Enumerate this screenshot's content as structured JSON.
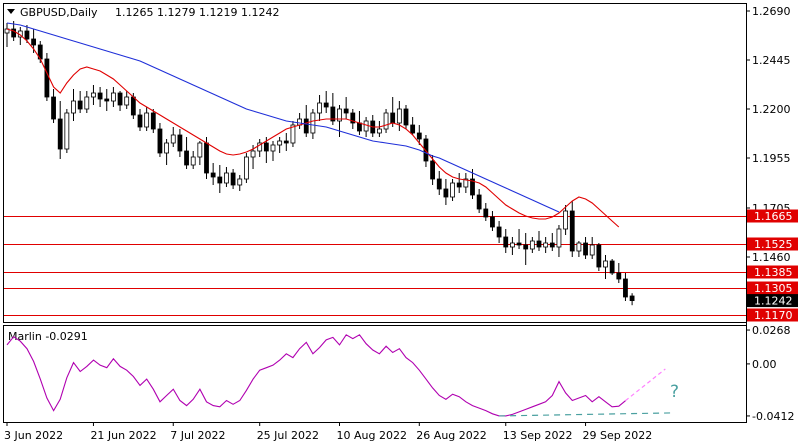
{
  "header": {
    "symbol": "GBPUSD,Daily",
    "ohlc": "1.1265 1.1279 1.1219 1.1242"
  },
  "indicator": {
    "label": "Marlin -0.0291",
    "question_mark": "?"
  },
  "colors": {
    "candle_up": "#ffffff",
    "candle_down": "#000000",
    "ma_fast": "#e00000",
    "ma_slow": "#1f2fd8",
    "level_line": "#e00000",
    "level_badge": "#e00000",
    "price_badge": "#000000",
    "oscillator": "#b000b0",
    "forecast_line": "#ff80ff",
    "trend_line": "#4aa0a0"
  },
  "chart_data": [
    {
      "type": "candlestick",
      "title": "GBPUSD,Daily",
      "y_ticks": [
        "1.2690",
        "1.2445",
        "1.2200",
        "1.1955",
        "1.1705",
        "1.1460"
      ],
      "ylim": [
        1.1135,
        1.2725
      ],
      "x_ticks": [
        "3 Jun 2022",
        "21 Jun 2022",
        "7 Jul 2022",
        "25 Jul 2022",
        "10 Aug 2022",
        "26 Aug 2022",
        "13 Sep 2022",
        "29 Sep 2022"
      ],
      "levels": [
        {
          "label": "1.1665",
          "value": 1.1665
        },
        {
          "label": "1.1525",
          "value": 1.1525
        },
        {
          "label": "1.1385",
          "value": 1.1385
        },
        {
          "label": "1.1305",
          "value": 1.1305
        },
        {
          "label": "1.1170",
          "value": 1.117
        }
      ],
      "current_price": {
        "label": "1.1242",
        "value": 1.1242
      },
      "candles": [
        [
          1.258,
          1.263,
          1.251,
          1.26
        ],
        [
          1.26,
          1.264,
          1.254,
          1.256
        ],
        [
          1.256,
          1.261,
          1.252,
          1.259
        ],
        [
          1.259,
          1.262,
          1.253,
          1.255
        ],
        [
          1.255,
          1.26,
          1.248,
          1.252
        ],
        [
          1.252,
          1.254,
          1.243,
          1.245
        ],
        [
          1.245,
          1.248,
          1.224,
          1.226
        ],
        [
          1.226,
          1.23,
          1.213,
          1.215
        ],
        [
          1.215,
          1.224,
          1.195,
          1.2
        ],
        [
          1.2,
          1.22,
          1.198,
          1.218
        ],
        [
          1.218,
          1.23,
          1.214,
          1.224
        ],
        [
          1.224,
          1.229,
          1.218,
          1.22
        ],
        [
          1.22,
          1.229,
          1.218,
          1.226
        ],
        [
          1.226,
          1.232,
          1.222,
          1.228
        ],
        [
          1.228,
          1.231,
          1.221,
          1.225
        ],
        [
          1.225,
          1.23,
          1.219,
          1.224
        ],
        [
          1.224,
          1.231,
          1.221,
          1.228
        ],
        [
          1.228,
          1.229,
          1.219,
          1.222
        ],
        [
          1.222,
          1.229,
          1.22,
          1.226
        ],
        [
          1.226,
          1.228,
          1.215,
          1.217
        ],
        [
          1.217,
          1.22,
          1.209,
          1.211
        ],
        [
          1.211,
          1.221,
          1.209,
          1.218
        ],
        [
          1.218,
          1.22,
          1.208,
          1.21
        ],
        [
          1.21,
          1.213,
          1.196,
          1.198
        ],
        [
          1.198,
          1.205,
          1.192,
          1.203
        ],
        [
          1.203,
          1.211,
          1.201,
          1.207
        ],
        [
          1.207,
          1.21,
          1.196,
          1.199
        ],
        [
          1.199,
          1.206,
          1.19,
          1.192
        ],
        [
          1.192,
          1.199,
          1.19,
          1.196
        ],
        [
          1.196,
          1.204,
          1.192,
          1.203
        ],
        [
          1.203,
          1.206,
          1.185,
          1.188
        ],
        [
          1.188,
          1.193,
          1.182,
          1.186
        ],
        [
          1.186,
          1.192,
          1.178,
          1.183
        ],
        [
          1.183,
          1.191,
          1.181,
          1.188
        ],
        [
          1.188,
          1.19,
          1.18,
          1.182
        ],
        [
          1.182,
          1.187,
          1.179,
          1.185
        ],
        [
          1.185,
          1.198,
          1.183,
          1.196
        ],
        [
          1.196,
          1.202,
          1.19,
          1.199
        ],
        [
          1.199,
          1.205,
          1.196,
          1.203
        ],
        [
          1.203,
          1.206,
          1.193,
          1.199
        ],
        [
          1.199,
          1.204,
          1.194,
          1.202
        ],
        [
          1.202,
          1.206,
          1.198,
          1.204
        ],
        [
          1.204,
          1.208,
          1.199,
          1.203
        ],
        [
          1.203,
          1.214,
          1.201,
          1.212
        ],
        [
          1.212,
          1.218,
          1.21,
          1.215
        ],
        [
          1.215,
          1.222,
          1.206,
          1.208
        ],
        [
          1.208,
          1.22,
          1.205,
          1.218
        ],
        [
          1.218,
          1.227,
          1.214,
          1.223
        ],
        [
          1.223,
          1.229,
          1.218,
          1.221
        ],
        [
          1.221,
          1.228,
          1.212,
          1.214
        ],
        [
          1.214,
          1.222,
          1.206,
          1.22
        ],
        [
          1.22,
          1.226,
          1.215,
          1.218
        ],
        [
          1.218,
          1.22,
          1.21,
          1.213
        ],
        [
          1.213,
          1.219,
          1.207,
          1.209
        ],
        [
          1.209,
          1.216,
          1.206,
          1.214
        ],
        [
          1.214,
          1.217,
          1.206,
          1.208
        ],
        [
          1.208,
          1.214,
          1.206,
          1.21
        ],
        [
          1.21,
          1.22,
          1.208,
          1.218
        ],
        [
          1.218,
          1.226,
          1.211,
          1.213
        ],
        [
          1.213,
          1.224,
          1.209,
          1.22
        ],
        [
          1.22,
          1.222,
          1.21,
          1.212
        ],
        [
          1.212,
          1.216,
          1.207,
          1.208
        ],
        [
          1.208,
          1.212,
          1.202,
          1.205
        ],
        [
          1.205,
          1.207,
          1.191,
          1.194
        ],
        [
          1.194,
          1.197,
          1.182,
          1.185
        ],
        [
          1.185,
          1.189,
          1.177,
          1.18
        ],
        [
          1.18,
          1.185,
          1.172,
          1.176
        ],
        [
          1.176,
          1.185,
          1.174,
          1.183
        ],
        [
          1.183,
          1.188,
          1.178,
          1.181
        ],
        [
          1.181,
          1.188,
          1.178,
          1.185
        ],
        [
          1.185,
          1.19,
          1.175,
          1.177
        ],
        [
          1.177,
          1.18,
          1.168,
          1.17
        ],
        [
          1.17,
          1.173,
          1.164,
          1.166
        ],
        [
          1.166,
          1.169,
          1.159,
          1.161
        ],
        [
          1.161,
          1.164,
          1.153,
          1.156
        ],
        [
          1.156,
          1.16,
          1.148,
          1.151
        ],
        [
          1.151,
          1.156,
          1.147,
          1.153
        ],
        [
          1.153,
          1.16,
          1.15,
          1.152
        ],
        [
          1.152,
          1.158,
          1.142,
          1.15
        ],
        [
          1.15,
          1.156,
          1.148,
          1.154
        ],
        [
          1.154,
          1.159,
          1.149,
          1.151
        ],
        [
          1.151,
          1.156,
          1.148,
          1.153
        ],
        [
          1.153,
          1.158,
          1.149,
          1.151
        ],
        [
          1.151,
          1.162,
          1.146,
          1.16
        ],
        [
          1.16,
          1.172,
          1.157,
          1.169
        ],
        [
          1.169,
          1.174,
          1.146,
          1.149
        ],
        [
          1.149,
          1.154,
          1.146,
          1.153
        ],
        [
          1.153,
          1.156,
          1.145,
          1.147
        ],
        [
          1.147,
          1.156,
          1.145,
          1.152
        ],
        [
          1.152,
          1.153,
          1.139,
          1.141
        ],
        [
          1.141,
          1.147,
          1.135,
          1.144
        ],
        [
          1.144,
          1.145,
          1.137,
          1.138
        ],
        [
          1.138,
          1.143,
          1.133,
          1.135
        ],
        [
          1.135,
          1.138,
          1.124,
          1.126
        ],
        [
          1.1265,
          1.1279,
          1.1219,
          1.1242
        ]
      ],
      "ma_fast": [
        1.26,
        1.259,
        1.257,
        1.254,
        1.25,
        1.245,
        1.238,
        1.231,
        1.228,
        1.233,
        1.237,
        1.24,
        1.241,
        1.24,
        1.239,
        1.237,
        1.235,
        1.232,
        1.229,
        1.226,
        1.223,
        1.221,
        1.219,
        1.217,
        1.215,
        1.213,
        1.211,
        1.209,
        1.207,
        1.205,
        1.203,
        1.201,
        1.199,
        1.1975,
        1.197,
        1.1975,
        1.1985,
        1.2,
        1.202,
        1.204,
        1.206,
        1.208,
        1.21,
        1.211,
        1.212,
        1.213,
        1.214,
        1.2145,
        1.215,
        1.215,
        1.215,
        1.215,
        1.214,
        1.213,
        1.212,
        1.211,
        1.211,
        1.212,
        1.213,
        1.212,
        1.21,
        1.207,
        1.203,
        1.199,
        1.195,
        1.191,
        1.188,
        1.186,
        1.185,
        1.1845,
        1.184,
        1.183,
        1.181,
        1.178,
        1.175,
        1.172,
        1.17,
        1.168,
        1.1665,
        1.1655,
        1.165,
        1.165,
        1.166,
        1.168,
        1.171,
        1.174,
        1.176,
        1.175,
        1.173,
        1.17,
        1.167,
        1.164,
        1.161
      ],
      "ma_slow": [
        1.263,
        1.2625,
        1.262,
        1.261,
        1.26,
        1.259,
        1.258,
        1.257,
        1.256,
        1.255,
        1.254,
        1.253,
        1.252,
        1.251,
        1.25,
        1.249,
        1.248,
        1.247,
        1.246,
        1.245,
        1.244,
        1.2425,
        1.241,
        1.2395,
        1.238,
        1.2365,
        1.235,
        1.2335,
        1.232,
        1.2305,
        1.229,
        1.2275,
        1.226,
        1.2245,
        1.223,
        1.2215,
        1.22,
        1.219,
        1.218,
        1.217,
        1.216,
        1.215,
        1.214,
        1.2135,
        1.213,
        1.2125,
        1.212,
        1.2115,
        1.211,
        1.21,
        1.209,
        1.208,
        1.207,
        1.206,
        1.205,
        1.204,
        1.2035,
        1.203,
        1.2025,
        1.202,
        1.2015,
        1.2005,
        1.1995,
        1.198,
        1.1965,
        1.1955,
        1.194,
        1.1925,
        1.191,
        1.1895,
        1.188,
        1.1865,
        1.185,
        1.1835,
        1.182,
        1.1805,
        1.179,
        1.1775,
        1.176,
        1.1745,
        1.173,
        1.1715,
        1.17,
        1.1685
      ]
    },
    {
      "type": "line",
      "title": "Marlin -0.0291",
      "y_ticks": [
        "0.0268",
        "0.00",
        "-0.0412"
      ],
      "ylim": [
        -0.046,
        0.03
      ],
      "series": [
        {
          "values": [
            0.015,
            0.0215,
            0.018,
            0.012,
            0.002,
            -0.012,
            -0.027,
            -0.037,
            -0.028,
            -0.011,
            0.001,
            -0.006,
            -0.002,
            0.003,
            -0.001,
            -0.003,
            0.004,
            -0.002,
            -0.005,
            -0.01,
            -0.017,
            -0.012,
            -0.02,
            -0.03,
            -0.025,
            -0.02,
            -0.029,
            -0.033,
            -0.028,
            -0.02,
            -0.03,
            -0.033,
            -0.034,
            -0.029,
            -0.032,
            -0.029,
            -0.021,
            -0.012,
            -0.005,
            -0.003,
            -0.001,
            0.003,
            0.008,
            0.005,
            0.012,
            0.017,
            0.008,
            0.013,
            0.019,
            0.021,
            0.015,
            0.023,
            0.02,
            0.023,
            0.016,
            0.011,
            0.008,
            0.014,
            0.009,
            0.012,
            0.005,
            0.001,
            -0.005,
            -0.012,
            -0.019,
            -0.025,
            -0.028,
            -0.024,
            -0.026,
            -0.03,
            -0.033,
            -0.035,
            -0.037,
            -0.0395,
            -0.0412,
            -0.0412,
            -0.04,
            -0.038,
            -0.036,
            -0.034,
            -0.032,
            -0.03,
            -0.025,
            -0.014,
            -0.023,
            -0.029,
            -0.027,
            -0.025,
            -0.03,
            -0.026,
            -0.03,
            -0.034,
            -0.0335,
            -0.0291
          ]
        }
      ]
    }
  ]
}
